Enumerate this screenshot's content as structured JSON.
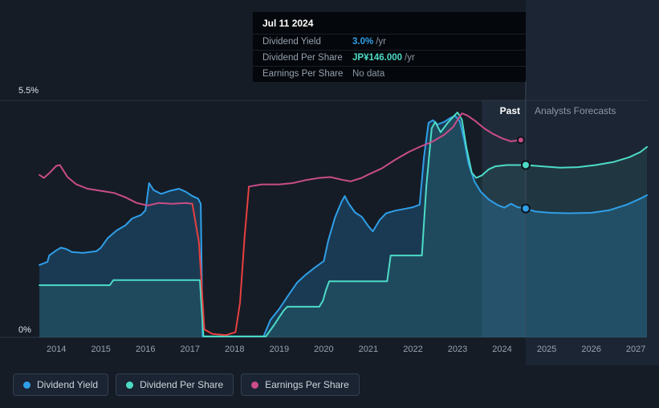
{
  "tooltip": {
    "date": "Jul 11 2024",
    "rows": [
      {
        "label": "Dividend Yield",
        "value": "3.0%",
        "suffix": "/yr",
        "color": "#2f9fe8",
        "emphasis": true
      },
      {
        "label": "Dividend Per Share",
        "value": "JP¥146.000",
        "suffix": "/yr",
        "color": "#4ddbc6",
        "emphasis": true
      },
      {
        "label": "Earnings Per Share",
        "value": "No data",
        "suffix": "",
        "color": "#8d98a6",
        "emphasis": false
      }
    ]
  },
  "axis": {
    "y_top": "5.5%",
    "y_bottom": "0%"
  },
  "annotations": {
    "past": "Past",
    "forecast": "Analysts Forecasts"
  },
  "legend": {
    "items": [
      {
        "label": "Dividend Yield",
        "color": "#2f9fe8"
      },
      {
        "label": "Dividend Per Share",
        "color": "#4ddbc6"
      },
      {
        "label": "Earnings Per Share",
        "color": "#c94d87"
      }
    ]
  },
  "chart_data": {
    "type": "line",
    "x_axis": {
      "min": 2013.6,
      "max": 2027.25,
      "ticks": [
        "2014",
        "2015",
        "2016",
        "2017",
        "2018",
        "2019",
        "2020",
        "2021",
        "2022",
        "2023",
        "2024",
        "2025",
        "2026",
        "2027"
      ]
    },
    "y_axis": {
      "min": 0,
      "max": 5.5,
      "top_label": "5.5%",
      "bottom_label": "0%",
      "grid": true
    },
    "divider_x": 2024.53,
    "past_band_start": 2023.55,
    "legend_position": "bottom",
    "series": [
      {
        "name": "Dividend Yield",
        "unit": "%/yr",
        "color": "#2f9fe8",
        "fill": "rgba(41,130,189,0.30)",
        "marker": [
          2024.53,
          2.99
        ],
        "points": [
          [
            2013.62,
            1.68
          ],
          [
            2013.8,
            1.75
          ],
          [
            2013.84,
            1.9
          ],
          [
            2014.0,
            2.02
          ],
          [
            2014.1,
            2.08
          ],
          [
            2014.22,
            2.05
          ],
          [
            2014.35,
            1.98
          ],
          [
            2014.6,
            1.96
          ],
          [
            2014.9,
            2.0
          ],
          [
            2015.0,
            2.08
          ],
          [
            2015.15,
            2.3
          ],
          [
            2015.35,
            2.48
          ],
          [
            2015.55,
            2.6
          ],
          [
            2015.7,
            2.76
          ],
          [
            2015.9,
            2.84
          ],
          [
            2016.0,
            2.95
          ],
          [
            2016.08,
            3.58
          ],
          [
            2016.18,
            3.42
          ],
          [
            2016.35,
            3.33
          ],
          [
            2016.55,
            3.4
          ],
          [
            2016.75,
            3.45
          ],
          [
            2016.9,
            3.38
          ],
          [
            2017.05,
            3.28
          ],
          [
            2017.18,
            3.22
          ],
          [
            2017.24,
            3.1
          ],
          [
            2017.28,
            0.02
          ],
          [
            2018.65,
            0.02
          ],
          [
            2018.8,
            0.4
          ],
          [
            2019.0,
            0.66
          ],
          [
            2019.2,
            0.97
          ],
          [
            2019.4,
            1.27
          ],
          [
            2019.6,
            1.46
          ],
          [
            2019.8,
            1.62
          ],
          [
            2020.0,
            1.77
          ],
          [
            2020.1,
            2.25
          ],
          [
            2020.25,
            2.78
          ],
          [
            2020.4,
            3.15
          ],
          [
            2020.47,
            3.28
          ],
          [
            2020.55,
            3.12
          ],
          [
            2020.7,
            2.9
          ],
          [
            2020.85,
            2.8
          ],
          [
            2021.0,
            2.58
          ],
          [
            2021.1,
            2.46
          ],
          [
            2021.25,
            2.72
          ],
          [
            2021.4,
            2.88
          ],
          [
            2021.6,
            2.94
          ],
          [
            2021.8,
            2.98
          ],
          [
            2022.0,
            3.02
          ],
          [
            2022.15,
            3.08
          ],
          [
            2022.25,
            4.2
          ],
          [
            2022.35,
            4.98
          ],
          [
            2022.45,
            5.04
          ],
          [
            2022.55,
            4.94
          ],
          [
            2022.7,
            5.0
          ],
          [
            2022.85,
            5.1
          ],
          [
            2022.95,
            5.14
          ],
          [
            2023.05,
            5.02
          ],
          [
            2023.15,
            4.58
          ],
          [
            2023.25,
            4.02
          ],
          [
            2023.38,
            3.62
          ],
          [
            2023.52,
            3.38
          ],
          [
            2023.7,
            3.2
          ],
          [
            2023.9,
            3.07
          ],
          [
            2024.05,
            3.01
          ],
          [
            2024.2,
            3.1
          ],
          [
            2024.35,
            3.02
          ],
          [
            2024.53,
            2.99
          ],
          [
            2024.75,
            2.92
          ],
          [
            2025.1,
            2.89
          ],
          [
            2025.5,
            2.88
          ],
          [
            2026.0,
            2.89
          ],
          [
            2026.4,
            2.95
          ],
          [
            2026.8,
            3.08
          ],
          [
            2027.1,
            3.22
          ],
          [
            2027.25,
            3.3
          ]
        ]
      },
      {
        "name": "Dividend Per Share",
        "unit": "JP¥/yr (scaled)",
        "color": "#4ddbc6",
        "fill": "rgba(77,219,198,0.10)",
        "marker": [
          2024.53,
          4.0
        ],
        "points": [
          [
            2013.62,
            1.21
          ],
          [
            2015.2,
            1.21
          ],
          [
            2015.28,
            1.33
          ],
          [
            2017.22,
            1.33
          ],
          [
            2017.3,
            0.02
          ],
          [
            2018.7,
            0.02
          ],
          [
            2018.88,
            0.28
          ],
          [
            2019.0,
            0.47
          ],
          [
            2019.1,
            0.62
          ],
          [
            2019.18,
            0.71
          ],
          [
            2019.9,
            0.71
          ],
          [
            2019.98,
            0.85
          ],
          [
            2020.05,
            1.1
          ],
          [
            2020.12,
            1.3
          ],
          [
            2021.42,
            1.3
          ],
          [
            2021.5,
            1.9
          ],
          [
            2022.2,
            1.9
          ],
          [
            2022.3,
            3.5
          ],
          [
            2022.42,
            4.85
          ],
          [
            2022.5,
            5.0
          ],
          [
            2022.62,
            4.76
          ],
          [
            2022.78,
            4.98
          ],
          [
            2022.92,
            5.14
          ],
          [
            2023.0,
            5.22
          ],
          [
            2023.1,
            5.05
          ],
          [
            2023.2,
            4.4
          ],
          [
            2023.32,
            3.82
          ],
          [
            2023.42,
            3.7
          ],
          [
            2023.55,
            3.76
          ],
          [
            2023.7,
            3.9
          ],
          [
            2023.85,
            3.97
          ],
          [
            2024.1,
            4.0
          ],
          [
            2024.53,
            4.0
          ],
          [
            2024.9,
            3.97
          ],
          [
            2025.3,
            3.94
          ],
          [
            2025.7,
            3.95
          ],
          [
            2026.1,
            4.0
          ],
          [
            2026.5,
            4.07
          ],
          [
            2026.85,
            4.18
          ],
          [
            2027.1,
            4.3
          ],
          [
            2027.25,
            4.42
          ]
        ]
      },
      {
        "name": "Earnings Per Share",
        "unit": "scaled",
        "color": "#c94d87",
        "loss_color": "#e8403f",
        "loss_range": [
          2017.05,
          2018.32
        ],
        "marker": [
          2024.42,
          4.58
        ],
        "points": [
          [
            2013.62,
            3.77
          ],
          [
            2013.72,
            3.7
          ],
          [
            2013.85,
            3.82
          ],
          [
            2014.0,
            3.98
          ],
          [
            2014.08,
            4.0
          ],
          [
            2014.25,
            3.72
          ],
          [
            2014.45,
            3.55
          ],
          [
            2014.7,
            3.45
          ],
          [
            2015.0,
            3.4
          ],
          [
            2015.3,
            3.35
          ],
          [
            2015.55,
            3.25
          ],
          [
            2015.8,
            3.12
          ],
          [
            2016.05,
            3.06
          ],
          [
            2016.3,
            3.12
          ],
          [
            2016.6,
            3.1
          ],
          [
            2016.9,
            3.12
          ],
          [
            2017.05,
            3.1
          ],
          [
            2017.2,
            2.2
          ],
          [
            2017.32,
            0.18
          ],
          [
            2017.5,
            0.08
          ],
          [
            2017.8,
            0.05
          ],
          [
            2018.02,
            0.12
          ],
          [
            2018.12,
            0.8
          ],
          [
            2018.22,
            2.3
          ],
          [
            2018.32,
            3.5
          ],
          [
            2018.6,
            3.55
          ],
          [
            2019.0,
            3.55
          ],
          [
            2019.3,
            3.58
          ],
          [
            2019.6,
            3.65
          ],
          [
            2019.9,
            3.7
          ],
          [
            2020.15,
            3.72
          ],
          [
            2020.4,
            3.66
          ],
          [
            2020.6,
            3.62
          ],
          [
            2020.85,
            3.7
          ],
          [
            2021.0,
            3.78
          ],
          [
            2021.3,
            3.92
          ],
          [
            2021.6,
            4.12
          ],
          [
            2021.9,
            4.3
          ],
          [
            2022.15,
            4.42
          ],
          [
            2022.45,
            4.55
          ],
          [
            2022.7,
            4.7
          ],
          [
            2022.9,
            4.88
          ],
          [
            2023.0,
            5.05
          ],
          [
            2023.1,
            5.2
          ],
          [
            2023.22,
            5.15
          ],
          [
            2023.4,
            5.02
          ],
          [
            2023.6,
            4.85
          ],
          [
            2023.8,
            4.72
          ],
          [
            2024.0,
            4.62
          ],
          [
            2024.2,
            4.55
          ],
          [
            2024.42,
            4.58
          ]
        ]
      }
    ]
  }
}
